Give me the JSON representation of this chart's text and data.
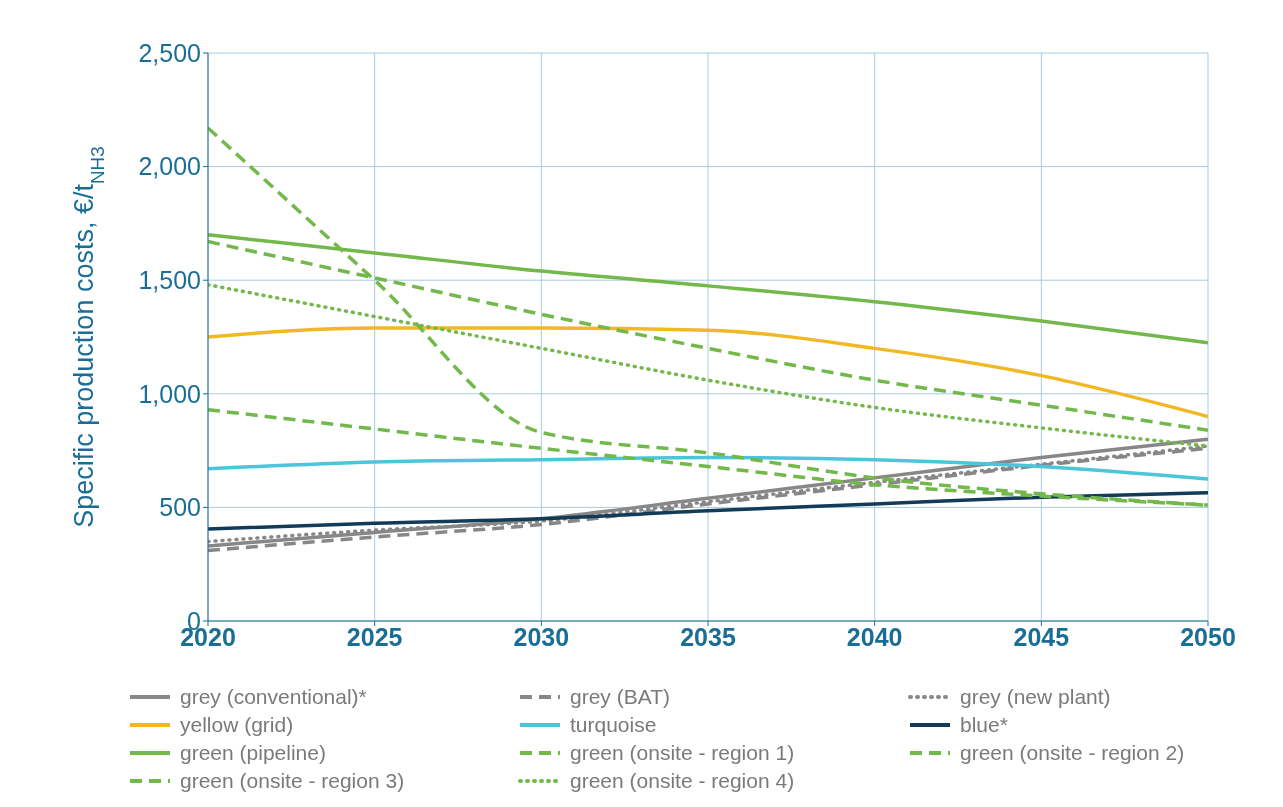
{
  "chart_data": {
    "type": "line",
    "ylabel": "Specific production costs, €/t$_{NH3}$",
    "x": [
      2020,
      2025,
      2030,
      2035,
      2040,
      2045,
      2050
    ],
    "xlim": [
      2020,
      2050
    ],
    "xticks": [
      2020,
      2025,
      2030,
      2035,
      2040,
      2045,
      2050
    ],
    "ylim": [
      0,
      2500
    ],
    "yticks": [
      0,
      500,
      {
        "value": 1000,
        "label": "1,000"
      },
      {
        "value": 1500,
        "label": "1,500"
      },
      {
        "value": 2000,
        "label": "2,000"
      },
      {
        "value": 2500,
        "label": "2,500"
      }
    ],
    "grid": true,
    "legend": "bottom",
    "marker": "none",
    "series": [
      {
        "name": "grey (conventional)*",
        "color": "#878787",
        "line_style": "solid",
        "values": [
          330,
          390,
          450,
          540,
          630,
          720,
          800
        ]
      },
      {
        "name": "grey (BAT)",
        "color": "#878787",
        "line_style": "dashed",
        "values": [
          310,
          370,
          425,
          515,
          600,
          685,
          760
        ]
      },
      {
        "name": "grey (new plant)",
        "color": "#878787",
        "line_style": "dotted",
        "values": [
          350,
          400,
          440,
          525,
          610,
          690,
          770
        ]
      },
      {
        "name": "yellow (grid)",
        "color": "#f0b823",
        "line_style": "solid",
        "values": [
          1250,
          1290,
          1290,
          1280,
          1200,
          1080,
          900
        ]
      },
      {
        "name": "turquoise",
        "color": "#4cc4da",
        "line_style": "solid",
        "values": [
          670,
          700,
          710,
          720,
          710,
          680,
          625
        ]
      },
      {
        "name": "blue*",
        "color": "#123b58",
        "line_style": "solid",
        "values": [
          405,
          430,
          450,
          485,
          515,
          545,
          565
        ]
      },
      {
        "name": "green (pipeline)",
        "color": "#72b84a",
        "line_style": "solid",
        "values": [
          1700,
          1620,
          1540,
          1475,
          1405,
          1320,
          1225
        ]
      },
      {
        "name": "green (onsite - region 1)",
        "color": "#72b84a",
        "line_style": "dashed",
        "values": [
          2170,
          1500,
          830,
          740,
          630,
          560,
          510
        ]
      },
      {
        "name": "green (onsite - region 2)",
        "color": "#72b84a",
        "line_style": "dashed",
        "values": [
          1670,
          1510,
          1350,
          1200,
          1060,
          950,
          840
        ]
      },
      {
        "name": "green (onsite - region 3)",
        "color": "#72b84a",
        "line_style": "dashed",
        "values": [
          930,
          845,
          760,
          680,
          600,
          550,
          510
        ]
      },
      {
        "name": "green (onsite - region 4)",
        "color": "#72b84a",
        "line_style": "dotted",
        "values": [
          1480,
          1340,
          1200,
          1060,
          940,
          850,
          770
        ]
      }
    ]
  }
}
